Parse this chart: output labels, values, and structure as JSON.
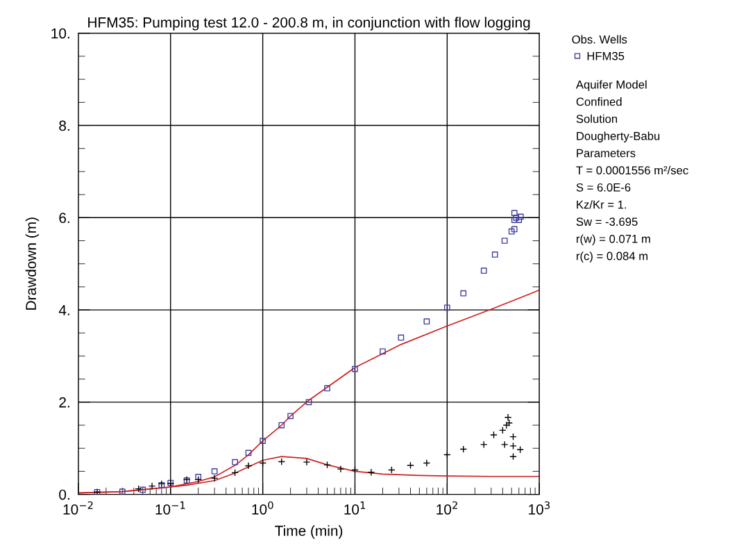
{
  "chart_data": {
    "type": "scatter",
    "title": "HFM35: Pumping test 12.0 - 200.8 m, in conjunction with flow logging",
    "xlabel": "Time (min)",
    "ylabel": "Drawdown (m)",
    "legend_title": "Obs. Wells",
    "legend": "right",
    "log": "x",
    "grid": true,
    "xlim": [
      0.01,
      1000
    ],
    "xticks": [
      {
        "value": 0.01,
        "label": "10$^{−2}$"
      },
      {
        "value": 0.1,
        "label": "10$^{−1}$"
      },
      {
        "value": 1,
        "label": "10$^{0}$"
      },
      {
        "value": 10,
        "label": "10$^{1}$"
      },
      {
        "value": 100,
        "label": "10$^{2}$"
      },
      {
        "value": 1000,
        "label": "10$^{3}$"
      }
    ],
    "ylim": [
      0,
      10
    ],
    "yticks": [
      {
        "value": 0,
        "label": "0."
      },
      {
        "value": 2,
        "label": "2."
      },
      {
        "value": 4,
        "label": "4."
      },
      {
        "value": 6,
        "label": "6."
      },
      {
        "value": 8,
        "label": "8."
      },
      {
        "value": 10,
        "label": "10."
      }
    ],
    "series": [
      {
        "name": "HFM35",
        "marker": "square",
        "color": "#3f3f9f",
        "x": [
          0.016,
          0.03,
          0.05,
          0.08,
          0.1,
          0.15,
          0.2,
          0.3,
          0.5,
          0.7,
          1.0,
          1.6,
          2.0,
          3.16,
          5.0,
          10,
          20,
          31.6,
          60,
          100,
          150,
          250,
          330,
          420,
          500,
          536,
          536,
          536,
          560,
          600,
          627
        ],
        "values": [
          0.05,
          0.06,
          0.1,
          0.2,
          0.25,
          0.3,
          0.38,
          0.5,
          0.7,
          0.9,
          1.16,
          1.5,
          1.7,
          2.0,
          2.3,
          2.72,
          3.1,
          3.4,
          3.75,
          4.05,
          4.36,
          4.85,
          5.2,
          5.5,
          5.7,
          5.75,
          5.95,
          6.1,
          6.0,
          5.95,
          6.02
        ]
      },
      {
        "marker": "cross",
        "color": "#000000",
        "x": [
          0.016,
          0.045,
          0.063,
          0.08,
          0.1,
          0.15,
          0.2,
          0.3,
          0.5,
          0.7,
          1.0,
          1.6,
          3.0,
          5.0,
          7.0,
          10,
          15,
          25,
          40,
          60,
          100,
          150,
          250,
          320,
          400,
          420,
          440,
          457,
          470,
          520,
          520,
          520,
          620
        ],
        "values": [
          0.05,
          0.12,
          0.18,
          0.23,
          0.24,
          0.32,
          0.32,
          0.35,
          0.47,
          0.62,
          0.68,
          0.71,
          0.7,
          0.64,
          0.55,
          0.53,
          0.48,
          0.53,
          0.63,
          0.68,
          0.86,
          0.98,
          1.08,
          1.29,
          1.39,
          1.08,
          1.5,
          1.67,
          1.55,
          1.25,
          1.05,
          0.82,
          0.97
        ]
      },
      {
        "type": "line",
        "marker": "none",
        "line_style": "solid",
        "color": "#d02020",
        "x": [
          0.01,
          0.03,
          0.1,
          0.2,
          0.3,
          0.5,
          0.7,
          1.0,
          1.6,
          2.0,
          3.16,
          10,
          31.6,
          100,
          316,
          1000
        ],
        "values": [
          0.03,
          0.06,
          0.16,
          0.28,
          0.38,
          0.63,
          0.86,
          1.16,
          1.5,
          1.7,
          2.04,
          2.75,
          3.25,
          3.65,
          4.03,
          4.43
        ]
      },
      {
        "type": "line",
        "marker": "none",
        "line_style": "solid",
        "color": "#d02020",
        "x": [
          0.01,
          0.03,
          0.1,
          0.15,
          0.3,
          0.5,
          1.0,
          1.6,
          3.0,
          5.0,
          10,
          20,
          50,
          100,
          300,
          1000
        ],
        "values": [
          0.03,
          0.06,
          0.16,
          0.2,
          0.3,
          0.46,
          0.74,
          0.82,
          0.78,
          0.64,
          0.5,
          0.44,
          0.41,
          0.4,
          0.39,
          0.39
        ]
      }
    ],
    "annotations": [
      "Aquifer Model",
      "Confined",
      "Solution",
      "Dougherty-Babu",
      "Parameters",
      "T = 0.0001556 m²/sec",
      "S = 6.0E-6",
      "Kz/Kr = 1.",
      "Sw = -3.695",
      "r(w) = 0.071 m",
      "r(c) = 0.084 m"
    ]
  }
}
